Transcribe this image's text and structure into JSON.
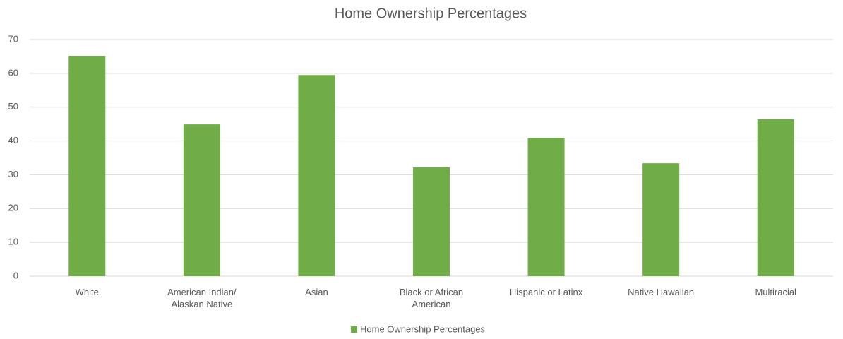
{
  "chart_data": {
    "type": "bar",
    "title": "Home Ownership Percentages",
    "categories": [
      "White",
      "American Indian/ Alaskan Native",
      "Asian",
      "Black or African American",
      "Hispanic or Latinx",
      "Native Hawaiian",
      "Multiracial"
    ],
    "series": [
      {
        "name": "Home Ownership Percentages",
        "color": "#70ad47",
        "values": [
          65.2,
          44.9,
          59.5,
          32.2,
          40.9,
          33.4,
          46.4
        ]
      }
    ],
    "ylim": [
      0,
      70
    ],
    "yticks": [
      0,
      10,
      20,
      30,
      40,
      50,
      60,
      70
    ],
    "grid": true,
    "legend": "bottom"
  }
}
